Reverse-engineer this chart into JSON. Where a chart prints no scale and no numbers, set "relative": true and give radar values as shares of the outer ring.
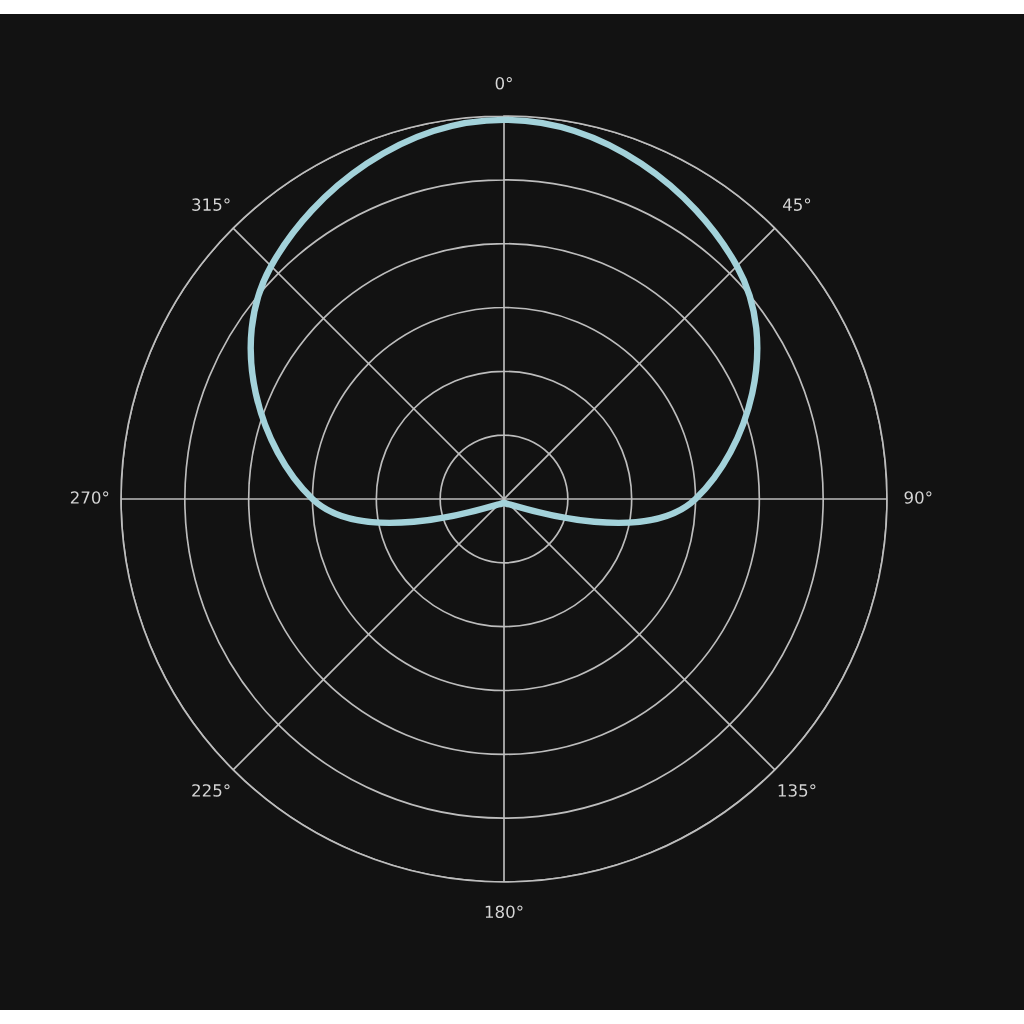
{
  "chart_data": {
    "type": "radar",
    "relative": true,
    "grid": true,
    "categories": [
      "0°",
      "45°",
      "90°",
      "135°",
      "180°",
      "225°",
      "270°",
      "315°"
    ],
    "series": [
      {
        "color": "#a3d2da",
        "values": [
          0.99,
          0.86,
          0.5,
          0.02,
          0.01,
          0.02,
          0.5,
          0.86
        ]
      }
    ]
  }
}
